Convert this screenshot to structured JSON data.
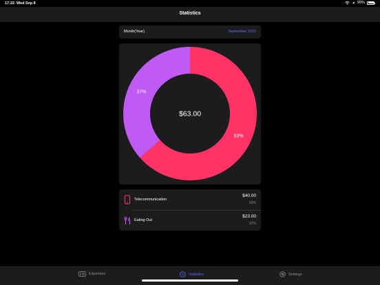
{
  "status_bar": {
    "time": "17:22",
    "date": "Wed Sep 8",
    "battery": "99%"
  },
  "nav": {
    "title": "Statistics"
  },
  "month_selector": {
    "label": "Month(Year)",
    "value": "September 2021"
  },
  "chart_data": {
    "type": "pie",
    "categories": [
      "Telecommunication",
      "Eating Out"
    ],
    "values": [
      40.0,
      23.0
    ],
    "percent_labels": [
      "63%",
      "37%"
    ],
    "colors": [
      "#ff3366",
      "#bf5af2"
    ],
    "center_label": "$63.00",
    "title": "",
    "donut": true
  },
  "expenses": [
    {
      "name": "Telecommunication",
      "amount": "$40.00",
      "percent": "63%",
      "icon": "phone-icon",
      "color": "#ff3366"
    },
    {
      "name": "Eating Out",
      "amount": "$23.00",
      "percent": "37%",
      "icon": "fork-knife-icon",
      "color": "#bf5af2"
    }
  ],
  "tabbar": {
    "tabs": [
      {
        "label": "Expenses",
        "icon": "list-icon",
        "active": false
      },
      {
        "label": "Statistics",
        "icon": "clock-icon",
        "active": true
      },
      {
        "label": "Settings",
        "icon": "gear-icon",
        "active": false
      }
    ]
  },
  "colors": {
    "accent": "#5b6df8",
    "card": "#1c1c1e",
    "background": "#000000"
  }
}
